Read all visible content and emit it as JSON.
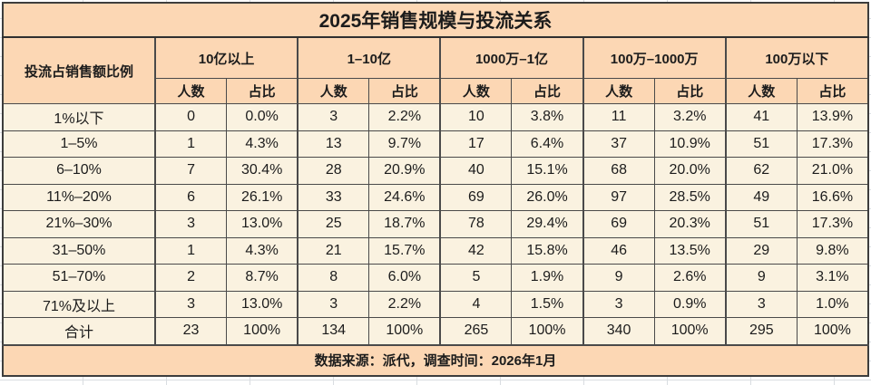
{
  "chart_data": {
    "type": "table",
    "title": "2025年销售规模与投流关系",
    "row_header": "投流占销售额比例",
    "groups": [
      "10亿以上",
      "1–10亿",
      "1000万–1亿",
      "100万–1000万",
      "100万以下"
    ],
    "subheaders": [
      "人数",
      "占比"
    ],
    "rows": [
      {
        "label": "1%以下",
        "values": [
          "0",
          "0.0%",
          "3",
          "2.2%",
          "10",
          "3.8%",
          "11",
          "3.2%",
          "41",
          "13.9%"
        ]
      },
      {
        "label": "1–5%",
        "values": [
          "1",
          "4.3%",
          "13",
          "9.7%",
          "17",
          "6.4%",
          "37",
          "10.9%",
          "51",
          "17.3%"
        ]
      },
      {
        "label": "6–10%",
        "values": [
          "7",
          "30.4%",
          "28",
          "20.9%",
          "40",
          "15.1%",
          "68",
          "20.0%",
          "62",
          "21.0%"
        ]
      },
      {
        "label": "11%–20%",
        "values": [
          "6",
          "26.1%",
          "33",
          "24.6%",
          "69",
          "26.0%",
          "97",
          "28.5%",
          "49",
          "16.6%"
        ]
      },
      {
        "label": "21%–30%",
        "values": [
          "3",
          "13.0%",
          "25",
          "18.7%",
          "78",
          "29.4%",
          "69",
          "20.3%",
          "51",
          "17.3%"
        ]
      },
      {
        "label": "31–50%",
        "values": [
          "1",
          "4.3%",
          "21",
          "15.7%",
          "42",
          "15.8%",
          "46",
          "13.5%",
          "29",
          "9.8%"
        ]
      },
      {
        "label": "51–70%",
        "values": [
          "2",
          "8.7%",
          "8",
          "6.0%",
          "5",
          "1.9%",
          "9",
          "2.6%",
          "9",
          "3.1%"
        ]
      },
      {
        "label": "71%及以上",
        "values": [
          "3",
          "13.0%",
          "3",
          "2.2%",
          "4",
          "1.5%",
          "3",
          "0.9%",
          "3",
          "1.0%"
        ]
      },
      {
        "label": "合计",
        "values": [
          "23",
          "100%",
          "134",
          "100%",
          "265",
          "100%",
          "340",
          "100%",
          "295",
          "100%"
        ]
      }
    ],
    "footer": "数据来源：派代，调查时间：2026年1月"
  },
  "colors": {
    "header_bg": "#fcd7b4",
    "cell_bg": "#faf2e0",
    "border": "#4a4a4a",
    "text": "#1c1c1c"
  }
}
